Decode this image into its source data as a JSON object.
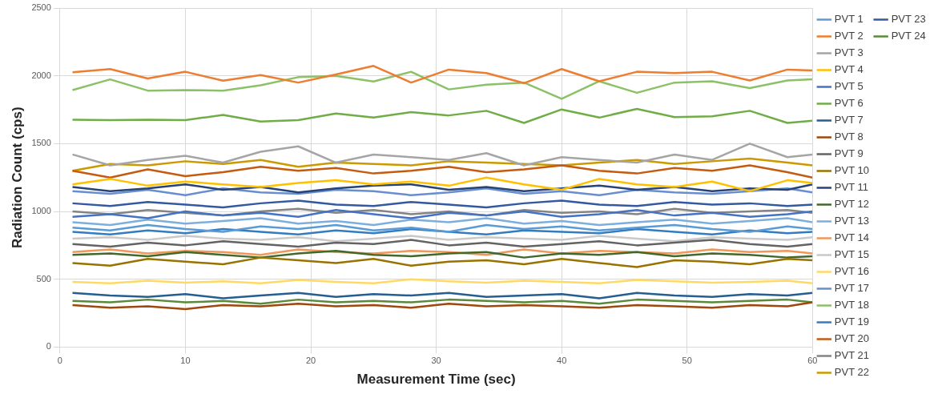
{
  "chart_data": {
    "type": "line",
    "xlabel": "Measurement Time (sec)",
    "ylabel": "Radiation Count (cps)",
    "x": [
      1,
      4,
      7,
      10,
      13,
      16,
      19,
      22,
      25,
      28,
      31,
      34,
      37,
      40,
      43,
      46,
      49,
      52,
      55,
      58,
      60
    ],
    "xlim": [
      0,
      60
    ],
    "xticks": [
      0,
      10,
      20,
      30,
      40,
      50,
      60
    ],
    "ylim": [
      0,
      2500
    ],
    "yticks": [
      0,
      500,
      1000,
      1500,
      2000,
      2500
    ],
    "grid": true,
    "legend": "right",
    "marker": "none",
    "line_style": "solid",
    "series": [
      {
        "name": "PVT 1",
        "color": "#5b9bd5",
        "values": [
          880,
          860,
          900,
          870,
          850,
          890,
          870,
          900,
          860,
          880,
          850,
          900,
          870,
          890,
          860,
          880,
          900,
          870,
          850,
          890,
          870
        ]
      },
      {
        "name": "PVT 2",
        "color": "#ed7d31",
        "values": [
          2026,
          2050,
          1980,
          2030,
          1964,
          2006,
          1950,
          2010,
          2073,
          1950,
          2046,
          2020,
          1946,
          2050,
          1960,
          2030,
          2020,
          2030,
          1966,
          2046,
          2040
        ]
      },
      {
        "name": "PVT 3",
        "color": "#a5a5a5",
        "values": [
          1420,
          1340,
          1380,
          1410,
          1360,
          1440,
          1480,
          1360,
          1420,
          1400,
          1380,
          1430,
          1340,
          1400,
          1380,
          1360,
          1420,
          1380,
          1500,
          1400,
          1420
        ]
      },
      {
        "name": "PVT 4",
        "color": "#ffc000",
        "values": [
          1200,
          1240,
          1190,
          1220,
          1200,
          1180,
          1210,
          1230,
          1200,
          1220,
          1190,
          1250,
          1200,
          1160,
          1240,
          1200,
          1180,
          1220,
          1150,
          1230,
          1210
        ]
      },
      {
        "name": "PVT 5",
        "color": "#4472c4",
        "values": [
          960,
          980,
          950,
          1000,
          970,
          990,
          960,
          1010,
          980,
          950,
          990,
          970,
          1000,
          960,
          980,
          1010,
          970,
          990,
          960,
          980,
          1000
        ]
      },
      {
        "name": "PVT 6",
        "color": "#70ad47",
        "values": [
          1677,
          1673,
          1677,
          1673,
          1712,
          1663,
          1673,
          1722,
          1692,
          1732,
          1708,
          1742,
          1653,
          1752,
          1692,
          1756,
          1696,
          1702,
          1742,
          1653,
          1669
        ]
      },
      {
        "name": "PVT 7",
        "color": "#255e91",
        "values": [
          400,
          380,
          370,
          390,
          360,
          380,
          400,
          370,
          390,
          380,
          400,
          370,
          380,
          390,
          360,
          400,
          380,
          370,
          390,
          380,
          400
        ]
      },
      {
        "name": "PVT 8",
        "color": "#9e480e",
        "values": [
          310,
          290,
          300,
          280,
          310,
          300,
          320,
          300,
          310,
          290,
          320,
          300,
          310,
          300,
          290,
          310,
          300,
          290,
          310,
          300,
          330
        ]
      },
      {
        "name": "PVT 9",
        "color": "#636363",
        "values": [
          760,
          740,
          770,
          750,
          780,
          760,
          740,
          770,
          760,
          790,
          750,
          770,
          740,
          760,
          780,
          750,
          770,
          790,
          760,
          740,
          760
        ]
      },
      {
        "name": "PVT 10",
        "color": "#997300",
        "values": [
          620,
          600,
          650,
          630,
          610,
          660,
          640,
          620,
          650,
          600,
          630,
          640,
          610,
          650,
          620,
          590,
          640,
          630,
          610,
          650,
          640
        ]
      },
      {
        "name": "PVT 11",
        "color": "#264478",
        "values": [
          1180,
          1150,
          1170,
          1200,
          1160,
          1180,
          1140,
          1170,
          1190,
          1200,
          1160,
          1180,
          1150,
          1170,
          1190,
          1160,
          1180,
          1150,
          1170,
          1160,
          1200
        ]
      },
      {
        "name": "PVT 12",
        "color": "#43682b",
        "values": [
          680,
          690,
          670,
          700,
          680,
          660,
          690,
          710,
          680,
          670,
          690,
          700,
          660,
          690,
          680,
          700,
          670,
          690,
          680,
          660,
          670
        ]
      },
      {
        "name": "PVT 13",
        "color": "#7cafdd",
        "values": [
          920,
          900,
          940,
          910,
          930,
          950,
          910,
          930,
          900,
          940,
          920,
          950,
          910,
          930,
          900,
          920,
          940,
          910,
          930,
          950,
          920
        ]
      },
      {
        "name": "PVT 14",
        "color": "#f1975a",
        "values": [
          700,
          720,
          690,
          710,
          700,
          680,
          720,
          700,
          690,
          710,
          700,
          680,
          720,
          690,
          710,
          700,
          690,
          720,
          700,
          710,
          690
        ]
      },
      {
        "name": "PVT 15",
        "color": "#c9c9c9",
        "values": [
          800,
          810,
          790,
          820,
          800,
          790,
          810,
          780,
          800,
          820,
          790,
          810,
          800,
          790,
          820,
          800,
          780,
          810,
          800,
          790,
          810
        ]
      },
      {
        "name": "PVT 16",
        "color": "#ffd966",
        "values": [
          480,
          470,
          490,
          475,
          485,
          470,
          495,
          480,
          470,
          500,
          485,
          475,
          490,
          480,
          470,
          495,
          485,
          475,
          480,
          490,
          470
        ]
      },
      {
        "name": "PVT 17",
        "color": "#698ed0",
        "values": [
          1150,
          1130,
          1160,
          1120,
          1170,
          1140,
          1130,
          1160,
          1150,
          1120,
          1140,
          1170,
          1130,
          1150,
          1120,
          1160,
          1140,
          1130,
          1150,
          1170,
          1140
        ]
      },
      {
        "name": "PVT 18",
        "color": "#8cc168",
        "values": [
          1895,
          1974,
          1891,
          1895,
          1891,
          1930,
          1990,
          2000,
          1958,
          2030,
          1900,
          1935,
          1950,
          1830,
          1960,
          1875,
          1950,
          1960,
          1910,
          1966,
          1974
        ]
      },
      {
        "name": "PVT 19",
        "color": "#327dc2",
        "values": [
          850,
          830,
          860,
          840,
          870,
          850,
          830,
          860,
          840,
          870,
          850,
          830,
          860,
          850,
          840,
          870,
          850,
          830,
          860,
          840,
          850
        ]
      },
      {
        "name": "PVT 20",
        "color": "#c55a11",
        "values": [
          1300,
          1250,
          1310,
          1260,
          1290,
          1330,
          1300,
          1320,
          1280,
          1300,
          1330,
          1290,
          1310,
          1340,
          1300,
          1280,
          1320,
          1300,
          1340,
          1290,
          1250
        ]
      },
      {
        "name": "PVT 21",
        "color": "#848484",
        "values": [
          1000,
          980,
          1010,
          990,
          970,
          1000,
          1020,
          990,
          1010,
          980,
          1000,
          970,
          1010,
          990,
          1000,
          980,
          1020,
          990,
          1000,
          1010,
          990
        ]
      },
      {
        "name": "PVT 22",
        "color": "#cc9a00",
        "values": [
          1300,
          1350,
          1340,
          1370,
          1350,
          1380,
          1330,
          1360,
          1350,
          1340,
          1370,
          1360,
          1350,
          1340,
          1360,
          1380,
          1350,
          1370,
          1390,
          1360,
          1340
        ]
      },
      {
        "name": "PVT 23",
        "color": "#335aa1",
        "values": [
          1060,
          1040,
          1070,
          1050,
          1030,
          1060,
          1080,
          1050,
          1040,
          1070,
          1050,
          1030,
          1060,
          1080,
          1050,
          1040,
          1070,
          1050,
          1060,
          1040,
          1050
        ]
      },
      {
        "name": "PVT 24",
        "color": "#5a8a39",
        "values": [
          340,
          330,
          350,
          330,
          340,
          320,
          350,
          330,
          340,
          330,
          350,
          340,
          330,
          340,
          320,
          350,
          340,
          330,
          340,
          350,
          330
        ]
      }
    ]
  }
}
